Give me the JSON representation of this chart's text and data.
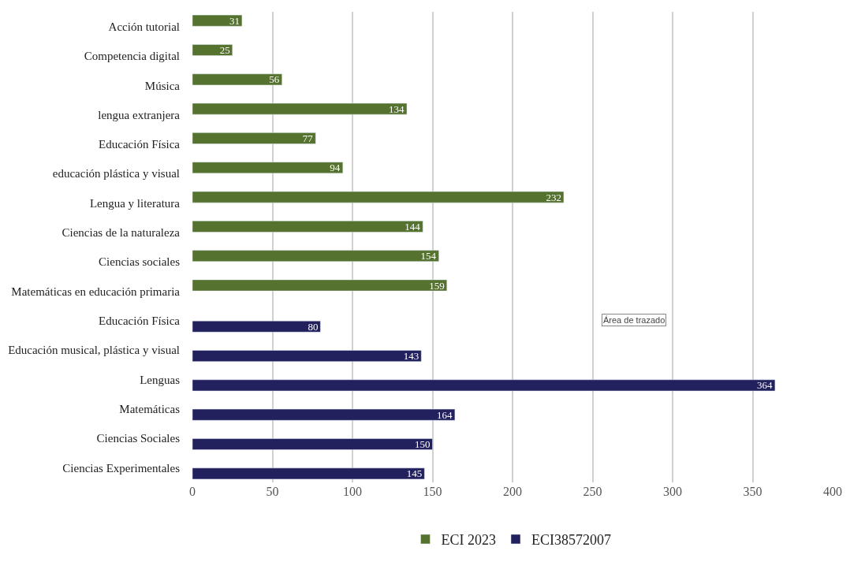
{
  "chart_data": {
    "type": "bar",
    "orientation": "horizontal",
    "categories": [
      "Acción tutorial",
      "Competencia digital",
      "Música",
      "lengua extranjera",
      "Educación Física",
      "educación plástica y visual",
      "Lengua y literatura",
      "Ciencias de la naturaleza",
      "Ciencias sociales",
      "Matemáticas en educación primaria",
      "Educación Física",
      "Educación musical, plástica y visual",
      "Lenguas",
      "Matemáticas",
      "Ciencias Sociales",
      "Ciencias Experimentales"
    ],
    "series": [
      {
        "name": "ECI 2023",
        "color": "#56722f",
        "values": [
          31,
          25,
          56,
          134,
          77,
          94,
          232,
          144,
          154,
          159,
          null,
          null,
          null,
          null,
          null,
          null
        ]
      },
      {
        "name": "ECI38572007",
        "color": "#22215e",
        "values": [
          null,
          null,
          null,
          null,
          null,
          null,
          null,
          null,
          null,
          null,
          80,
          143,
          364,
          164,
          150,
          145
        ]
      }
    ],
    "xlim": [
      0,
      400
    ],
    "xticks": [
      0,
      50,
      100,
      150,
      200,
      250,
      300,
      350,
      400
    ],
    "grid": "x",
    "legend": "bottom",
    "data_labels": true,
    "annotations": [
      "Área de trazado"
    ]
  }
}
